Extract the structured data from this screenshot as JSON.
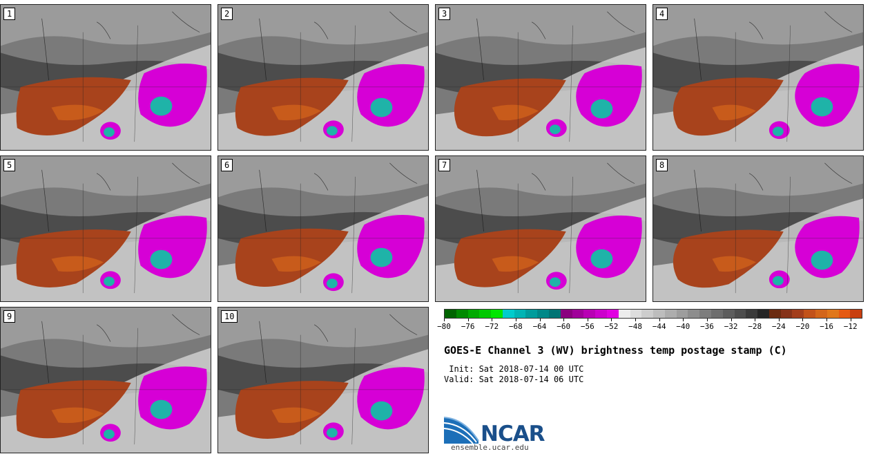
{
  "panels": [
    {
      "label": "1"
    },
    {
      "label": "2"
    },
    {
      "label": "3"
    },
    {
      "label": "4"
    },
    {
      "label": "5"
    },
    {
      "label": "6"
    },
    {
      "label": "7"
    },
    {
      "label": "8"
    },
    {
      "label": "9"
    },
    {
      "label": "10"
    }
  ],
  "colorbar": {
    "ticks": [
      "-80",
      "-76",
      "-72",
      "-68",
      "-64",
      "-60",
      "-56",
      "-52",
      "-48",
      "-44",
      "-40",
      "-36",
      "-32",
      "-28",
      "-24",
      "-20",
      "-16",
      "-12"
    ],
    "tick_min": -80,
    "tick_max": -12,
    "range": [
      -80,
      -10
    ],
    "colors": [
      "#006400",
      "#008a00",
      "#00aa00",
      "#00c800",
      "#00e600",
      "#00cccc",
      "#00b4b4",
      "#009c9c",
      "#008888",
      "#007474",
      "#8a007f",
      "#a0009a",
      "#b800b4",
      "#cc00cc",
      "#e100e1",
      "#ececec",
      "#dddddd",
      "#cdcdcd",
      "#bdbdbd",
      "#adadad",
      "#9d9d9d",
      "#8d8d8d",
      "#7d7d7d",
      "#6d6d6d",
      "#5d5d5d",
      "#4d4d4d",
      "#3a3a3a",
      "#252525",
      "#6b2b10",
      "#86331a",
      "#a33e1c",
      "#c2521a",
      "#d3661a",
      "#e0771a",
      "#e55a12",
      "#c83f10"
    ]
  },
  "legend": {
    "title": "GOES-E Channel 3 (WV) brightness temp postage stamp (C)",
    "init": " Init: Sat 2018-07-14 00 UTC",
    "valid": "Valid: Sat 2018-07-14 06 UTC"
  },
  "logo": {
    "name": "NCAR",
    "url": "ensemble.ucar.edu"
  },
  "colors": {
    "background_dark": "#3d3d3d",
    "background_mid": "#7a7a7a",
    "background_light": "#a9a9a9",
    "warm_band": "#a8431c",
    "warm_band_light": "#d0621c",
    "cold_cloud": "#d600d6",
    "coldest_core": "#1fb3a8",
    "moist_band": "#d4d4d4"
  }
}
